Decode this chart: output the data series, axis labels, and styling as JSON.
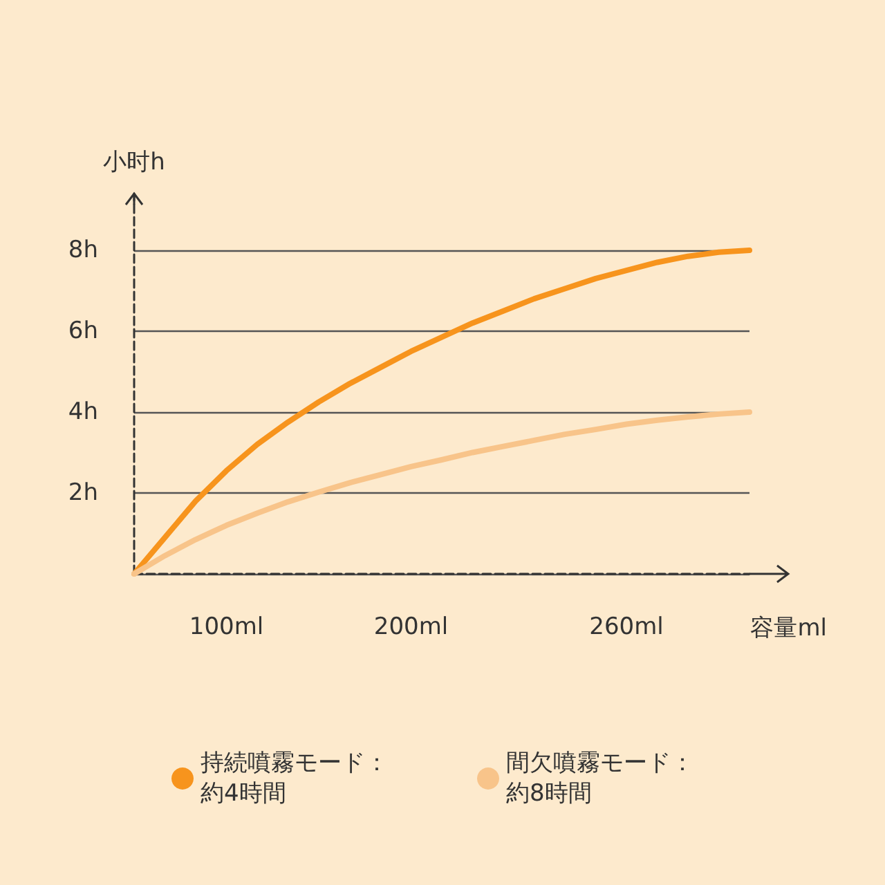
{
  "chart_data": {
    "type": "line",
    "xlabel": "容量ml",
    "ylabel": "小时h",
    "categories": [
      null,
      null,
      null,
      "100ml",
      null,
      null,
      null,
      null,
      null,
      "200ml",
      null,
      null,
      null,
      null,
      null,
      null,
      "260ml",
      null,
      null,
      null,
      null
    ],
    "series": [
      {
        "name": "持続噴霧モード：約4時間",
        "color": "#f7941d",
        "values": [
          0,
          0.9,
          1.8,
          2.55,
          3.2,
          3.75,
          4.25,
          4.7,
          5.1,
          5.5,
          5.85,
          6.2,
          6.5,
          6.8,
          7.05,
          7.3,
          7.5,
          7.7,
          7.85,
          7.95,
          8
        ]
      },
      {
        "name": "間欠噴霧モード：約8時間",
        "color": "#f8c48a",
        "values": [
          0,
          0.45,
          0.85,
          1.2,
          1.5,
          1.78,
          2.02,
          2.25,
          2.45,
          2.65,
          2.82,
          3.0,
          3.15,
          3.3,
          3.45,
          3.57,
          3.7,
          3.8,
          3.88,
          3.95,
          4
        ]
      }
    ],
    "ylim": [
      0,
      9.4
    ],
    "yticks": [
      {
        "value": 0,
        "label": null
      },
      {
        "value": 2,
        "label": "2h"
      },
      {
        "value": 4,
        "label": "4h"
      },
      {
        "value": 6,
        "label": "6h"
      },
      {
        "value": 8,
        "label": "8h"
      }
    ],
    "grid": "y",
    "legend": "bottom",
    "marker": "none",
    "line_style": "solid"
  }
}
